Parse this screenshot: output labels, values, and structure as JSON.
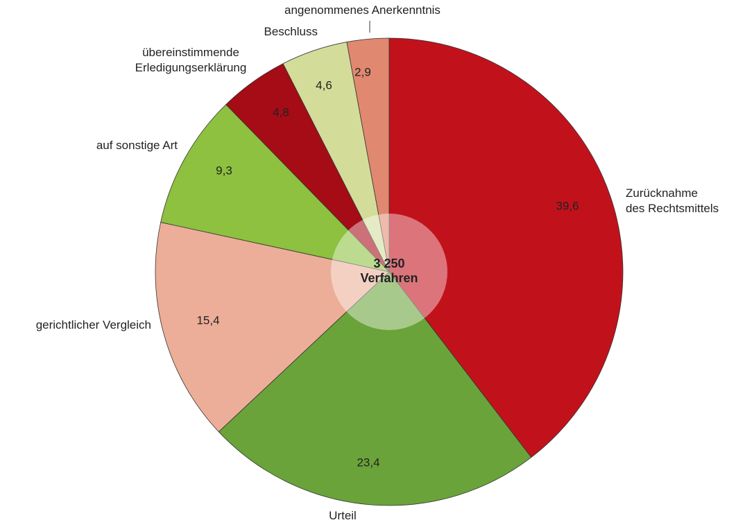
{
  "chart_data": {
    "type": "pie",
    "categories": [
      [
        "Zurücknahme",
        "des Rechtsmittels"
      ],
      [
        "Urteil"
      ],
      [
        "gerichtlicher Vergleich"
      ],
      [
        "auf sonstige Art"
      ],
      [
        "übereinstimmende",
        "Erledigungserklärung"
      ],
      [
        "Beschluss"
      ],
      [
        "angenommenes Anerkenntnis"
      ]
    ],
    "values": [
      39.6,
      23.4,
      15.4,
      9.3,
      4.8,
      4.6,
      2.9
    ],
    "value_labels": [
      "39,6",
      "23,4",
      "15,4",
      "9,3",
      "4,8",
      "4,6",
      "2,9"
    ],
    "colors": [
      "#c1121c",
      "#6aa339",
      "#ecae98",
      "#8dc13f",
      "#a50c16",
      "#d3dd99",
      "#e08870"
    ],
    "center_text": [
      "3 250",
      "Verfahren"
    ]
  }
}
